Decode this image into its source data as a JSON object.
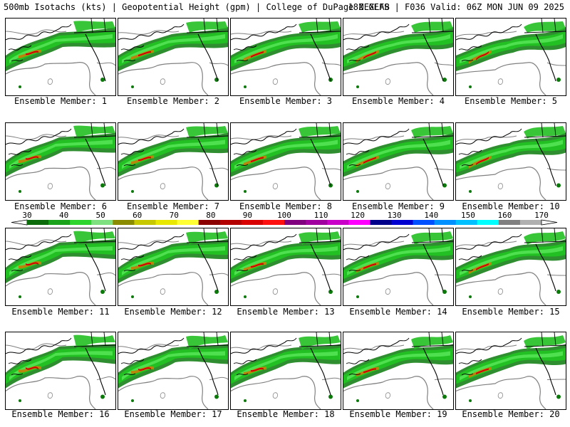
{
  "header": {
    "left": "500mb Isotachs (kts) | Geopotential Height (gpm) | College of DuPage NEXLAB",
    "right": "18Z GEFS | F036 Valid: 06Z MON JUN 09 2025"
  },
  "member_label_prefix": "Ensemble Member:",
  "members": [
    "1",
    "2",
    "3",
    "4",
    "5",
    "6",
    "7",
    "8",
    "9",
    "10",
    "11",
    "12",
    "13",
    "14",
    "15",
    "16",
    "17",
    "18",
    "19",
    "20"
  ],
  "colorbar": {
    "ticks": [
      "30",
      "40",
      "50",
      "60",
      "70",
      "80",
      "90",
      "100",
      "110",
      "120",
      "130",
      "140",
      "150",
      "160",
      "170"
    ],
    "colors": [
      "#0b6b0b",
      "#1aa31a",
      "#2dd52d",
      "#7fe07f",
      "#8b8b00",
      "#c8c800",
      "#e8e800",
      "#ffff33",
      "#8b0000",
      "#b30000",
      "#d80000",
      "#ff1010",
      "#800080",
      "#a000a0",
      "#c800c8",
      "#ff00ff",
      "#00008b",
      "#0000d0",
      "#0050ff",
      "#0090ff",
      "#00c0ff",
      "#00ffff",
      "#808080",
      "#b0b0b0"
    ]
  },
  "colors": {
    "wind_dark": "#0b7a0b",
    "wind_mid": "#22c022",
    "wind_light": "#4fe04f",
    "jet_core": "#b8860b",
    "jet_max": "#cc0000",
    "height_contour": "#808080",
    "coastline": "#000000"
  }
}
